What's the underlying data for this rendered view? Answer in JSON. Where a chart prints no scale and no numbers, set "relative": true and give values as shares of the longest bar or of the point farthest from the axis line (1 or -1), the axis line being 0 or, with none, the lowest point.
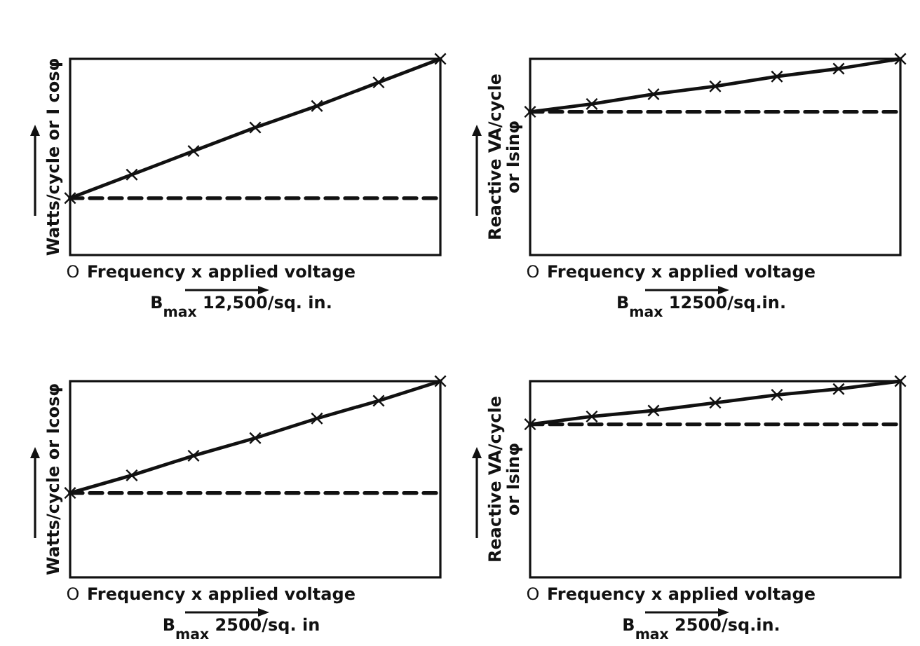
{
  "chart_data": [
    {
      "type": "line",
      "relative": true,
      "xlabel": "Frequency x applied voltage",
      "ylabel": "Watts/cycle or I cosφ",
      "annotations": [
        "O",
        "B$_{max}$ 12,500/sq. in."
      ],
      "categories": [
        null,
        null,
        null,
        null,
        null,
        null,
        null
      ],
      "series": [
        {
          "color": "#111111",
          "marker": "cross",
          "line_style": "solid",
          "values": [
            0.29,
            0.41,
            0.53,
            0.65,
            0.76,
            0.88,
            1
          ]
        },
        {
          "color": "#111111",
          "marker": "none",
          "line_style": "dashed",
          "values": [
            0.29,
            0.29,
            0.29,
            0.29,
            0.29,
            0.29,
            0.29
          ]
        }
      ]
    },
    {
      "type": "line",
      "relative": true,
      "xlabel": "Frequency x applied voltage",
      "ylabel": "Reactive VA/cycle\nor Isinφ",
      "annotations": [
        "O",
        "B$_{max}$ 12500/sq.in."
      ],
      "categories": [
        null,
        null,
        null,
        null,
        null,
        null,
        null
      ],
      "series": [
        {
          "color": "#111111",
          "marker": "cross",
          "line_style": "solid",
          "values": [
            0.73,
            0.77,
            0.82,
            0.86,
            0.91,
            0.95,
            1
          ]
        },
        {
          "color": "#111111",
          "marker": "none",
          "line_style": "dashed",
          "values": [
            0.73,
            0.73,
            0.73,
            0.73,
            0.73,
            0.73,
            0.73
          ]
        }
      ]
    },
    {
      "type": "line",
      "relative": true,
      "xlabel": "Frequency x applied voltage",
      "ylabel": "Watts/cycle or Icosφ",
      "annotations": [
        "O",
        "B$_{max}$ 2500/sq. in"
      ],
      "categories": [
        null,
        null,
        null,
        null,
        null,
        null,
        null
      ],
      "series": [
        {
          "color": "#111111",
          "marker": "cross",
          "line_style": "solid",
          "values": [
            0.43,
            0.52,
            0.62,
            0.71,
            0.81,
            0.9,
            1
          ]
        },
        {
          "color": "#111111",
          "marker": "none",
          "line_style": "dashed",
          "values": [
            0.43,
            0.43,
            0.43,
            0.43,
            0.43,
            0.43,
            0.43
          ]
        }
      ]
    },
    {
      "type": "line",
      "relative": true,
      "xlabel": "Frequency x applied voltage",
      "ylabel": "Reactive VA/cycle\nor Isinφ",
      "annotations": [
        "O",
        "B$_{max}$ 2500/sq.in."
      ],
      "categories": [
        null,
        null,
        null,
        null,
        null,
        null,
        null
      ],
      "series": [
        {
          "color": "#111111",
          "marker": "cross",
          "line_style": "solid",
          "values": [
            0.78,
            0.82,
            0.85,
            0.89,
            0.93,
            0.96,
            1
          ]
        },
        {
          "color": "#111111",
          "marker": "none",
          "line_style": "dashed",
          "values": [
            0.78,
            0.78,
            0.78,
            0.78,
            0.78,
            0.78,
            0.78
          ]
        }
      ]
    }
  ]
}
